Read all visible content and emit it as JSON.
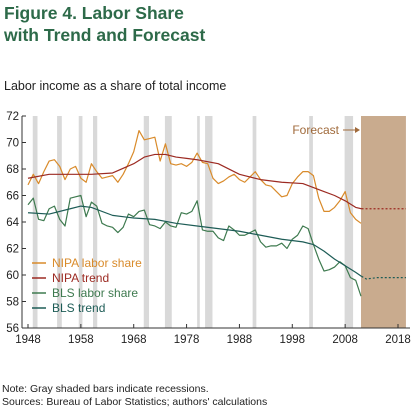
{
  "title_line1": "Figure 4. Labor Share",
  "title_line2": "with Trend and Forecast",
  "subtitle": "Labor income as a share of total income",
  "note": "Note: Gray shaded bars indicate recessions.",
  "sources": "Sources: Bureau of Labor Statistics; authors' calculations",
  "colors": {
    "nipa_share": "#d98b2b",
    "nipa_trend": "#9c2a22",
    "bls_share": "#3e7a4f",
    "bls_trend": "#1d5c56",
    "recession": "#d9d9d9",
    "forecast_band": "#c9ab8e",
    "forecast_label": "#a06a3b"
  },
  "chart_data": {
    "type": "line",
    "title": "Figure 4. Labor Share with Trend and Forecast",
    "ylabel": "Labor income as a share of total income",
    "xlim": [
      1948,
      2020
    ],
    "ylim": [
      56,
      72
    ],
    "xticks": [
      1948,
      1958,
      1968,
      1978,
      1988,
      1998,
      2008,
      2018
    ],
    "yticks": [
      56,
      58,
      60,
      62,
      64,
      66,
      68,
      70,
      72
    ],
    "grid": false,
    "legend": "bottom-left",
    "recessions": [
      [
        1948.9,
        1949.8
      ],
      [
        1953.5,
        1954.4
      ],
      [
        1957.6,
        1958.3
      ],
      [
        1960.3,
        1961.1
      ],
      [
        1969.9,
        1970.9
      ],
      [
        1973.9,
        1975.2
      ],
      [
        1980.0,
        1980.5
      ],
      [
        1981.5,
        1982.9
      ],
      [
        1990.5,
        1991.2
      ],
      [
        2001.2,
        2001.9
      ],
      [
        2007.9,
        2009.5
      ]
    ],
    "forecast": {
      "label": "Forecast",
      "start": 2011.0,
      "end": 2019.5
    },
    "series": [
      {
        "name": "NIPA labor share",
        "key": "nipa_share",
        "dashed_after": null,
        "x": [
          1948,
          1949,
          1950,
          1951,
          1952,
          1953,
          1954,
          1955,
          1956,
          1957,
          1958,
          1959,
          1960,
          1961,
          1962,
          1963,
          1964,
          1965,
          1966,
          1967,
          1968,
          1969,
          1970,
          1971,
          1972,
          1973,
          1974,
          1975,
          1976,
          1977,
          1978,
          1979,
          1980,
          1981,
          1982,
          1983,
          1984,
          1985,
          1986,
          1987,
          1988,
          1989,
          1990,
          1991,
          1992,
          1993,
          1994,
          1995,
          1996,
          1997,
          1998,
          1999,
          2000,
          2001,
          2002,
          2003,
          2004,
          2005,
          2006,
          2007,
          2008,
          2009,
          2010,
          2011
        ],
        "y": [
          66.8,
          67.6,
          66.9,
          67.8,
          68.6,
          68.7,
          68.2,
          67.2,
          68.0,
          68.2,
          67.3,
          67.0,
          68.4,
          67.8,
          67.3,
          67.4,
          67.5,
          67.0,
          67.6,
          68.4,
          69.3,
          70.9,
          70.2,
          70.3,
          70.4,
          68.6,
          69.9,
          68.4,
          68.3,
          68.4,
          68.2,
          68.5,
          69.2,
          68.5,
          68.4,
          67.3,
          66.9,
          67.1,
          67.4,
          67.6,
          67.2,
          67.0,
          67.4,
          67.8,
          67.2,
          66.8,
          66.7,
          66.3,
          65.9,
          66.0,
          66.9,
          67.4,
          67.8,
          67.8,
          67.5,
          65.8,
          64.8,
          64.8,
          65.1,
          65.6,
          66.3,
          64.7,
          64.2,
          63.9
        ]
      },
      {
        "name": "NIPA trend",
        "key": "nipa_trend",
        "dashed_after": 2011.1,
        "x": [
          1948,
          1952,
          1956,
          1960,
          1964,
          1968,
          1970,
          1972,
          1974,
          1976,
          1978,
          1980,
          1984,
          1988,
          1992,
          1996,
          2000,
          2002,
          2004,
          2006,
          2008,
          2010,
          2011.1,
          2013,
          2016,
          2019.5
        ],
        "y": [
          67.3,
          67.6,
          67.6,
          67.6,
          67.7,
          68.4,
          68.9,
          69.1,
          69.1,
          68.9,
          68.8,
          68.7,
          68.4,
          67.6,
          67.2,
          67.0,
          66.9,
          66.6,
          66.3,
          66.0,
          65.6,
          65.1,
          65.0,
          65.0,
          65.0,
          65.0
        ]
      },
      {
        "name": "BLS labor share",
        "key": "bls_share",
        "dashed_after": null,
        "x": [
          1948,
          1949,
          1950,
          1951,
          1952,
          1953,
          1954,
          1955,
          1956,
          1957,
          1958,
          1959,
          1960,
          1961,
          1962,
          1963,
          1964,
          1965,
          1966,
          1967,
          1968,
          1969,
          1970,
          1971,
          1972,
          1973,
          1974,
          1975,
          1976,
          1977,
          1978,
          1979,
          1980,
          1981,
          1982,
          1983,
          1984,
          1985,
          1986,
          1987,
          1988,
          1989,
          1990,
          1991,
          1992,
          1993,
          1994,
          1995,
          1996,
          1997,
          1998,
          1999,
          2000,
          2001,
          2002,
          2003,
          2004,
          2005,
          2006,
          2007,
          2008,
          2009,
          2010,
          2011
        ],
        "y": [
          65.3,
          65.8,
          64.2,
          64.1,
          65.0,
          65.2,
          64.2,
          63.7,
          65.8,
          65.9,
          66.0,
          64.4,
          65.5,
          65.2,
          63.9,
          63.7,
          63.6,
          63.2,
          63.6,
          64.6,
          64.4,
          64.8,
          64.9,
          63.8,
          63.7,
          63.5,
          64.0,
          63.7,
          63.6,
          64.7,
          64.6,
          64.8,
          65.6,
          63.4,
          63.3,
          63.3,
          62.8,
          62.6,
          63.7,
          63.4,
          63.0,
          63.0,
          63.2,
          63.4,
          62.5,
          62.1,
          62.2,
          62.2,
          62.4,
          62.0,
          62.7,
          63.0,
          63.7,
          63.5,
          62.3,
          61.2,
          60.3,
          60.4,
          60.6,
          61.0,
          60.7,
          59.8,
          59.6,
          58.4
        ]
      },
      {
        "name": "BLS trend",
        "key": "bls_trend",
        "dashed_after": 2011.1,
        "x": [
          1948,
          1952,
          1956,
          1958,
          1960,
          1964,
          1968,
          1972,
          1976,
          1980,
          1984,
          1988,
          1992,
          1996,
          2000,
          2002,
          2004,
          2006,
          2008,
          2010,
          2011.1,
          2012,
          2014,
          2016,
          2019.5
        ],
        "y": [
          64.7,
          64.6,
          65.0,
          65.2,
          65.1,
          64.5,
          64.3,
          64.2,
          63.9,
          63.7,
          63.5,
          63.3,
          63.0,
          62.7,
          62.5,
          62.3,
          61.8,
          61.2,
          60.7,
          60.2,
          59.9,
          59.7,
          59.8,
          59.8,
          59.8
        ]
      }
    ]
  }
}
